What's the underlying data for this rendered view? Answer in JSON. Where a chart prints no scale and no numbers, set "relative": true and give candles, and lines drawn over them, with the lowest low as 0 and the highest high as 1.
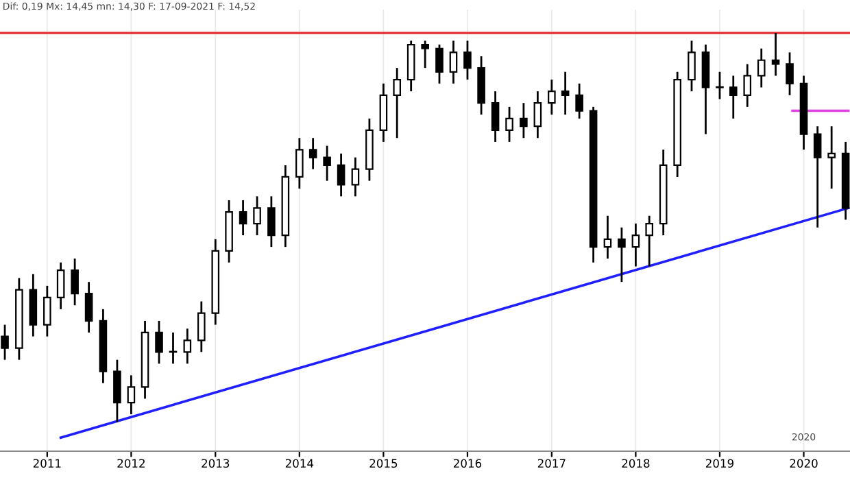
{
  "chart_data": {
    "type": "candlestick",
    "relative": true,
    "annotations": [
      "Dif: 0,19 Mx: 14,45 mn: 14,30 F: 17-09-2021 F: 14,52",
      "2020"
    ],
    "x": [
      "2010-07-01",
      "2010-09-01",
      "2010-11-01",
      "2011-01-01",
      "2011-03-01",
      "2011-05-01",
      "2011-07-01",
      "2011-09-01",
      "2011-11-01",
      "2012-01-01",
      "2012-03-01",
      "2012-05-01",
      "2012-07-01",
      "2012-09-01",
      "2012-11-01",
      "2013-01-01",
      "2013-03-01",
      "2013-05-01",
      "2013-07-01",
      "2013-09-01",
      "2013-11-01",
      "2014-01-01",
      "2014-03-01",
      "2014-05-01",
      "2014-07-01",
      "2014-09-01",
      "2014-11-01",
      "2015-01-01",
      "2015-03-01",
      "2015-05-01",
      "2015-07-01",
      "2015-09-01",
      "2015-11-01",
      "2016-01-01",
      "2016-03-01",
      "2016-05-01",
      "2016-07-01",
      "2016-09-01",
      "2016-11-01",
      "2017-01-01",
      "2017-03-01",
      "2017-05-01",
      "2017-07-01",
      "2017-09-01",
      "2017-11-01",
      "2018-01-01",
      "2018-03-01",
      "2018-05-01",
      "2018-07-01",
      "2018-09-01",
      "2018-11-01",
      "2019-01-01",
      "2019-03-01",
      "2019-05-01",
      "2019-07-01",
      "2019-09-01",
      "2019-11-01",
      "2020-01-01",
      "2020-03-01",
      "2020-05-01",
      "2020-07-01"
    ],
    "ohlc": [
      [
        0.22,
        0.25,
        0.16,
        0.19
      ],
      [
        0.19,
        0.37,
        0.16,
        0.34
      ],
      [
        0.34,
        0.38,
        0.22,
        0.25
      ],
      [
        0.25,
        0.35,
        0.22,
        0.32
      ],
      [
        0.32,
        0.41,
        0.29,
        0.39
      ],
      [
        0.39,
        0.42,
        0.3,
        0.33
      ],
      [
        0.33,
        0.36,
        0.23,
        0.26
      ],
      [
        0.26,
        0.29,
        0.1,
        0.13
      ],
      [
        0.13,
        0.16,
        0.0,
        0.05
      ],
      [
        0.05,
        0.12,
        0.02,
        0.09
      ],
      [
        0.09,
        0.26,
        0.06,
        0.23
      ],
      [
        0.23,
        0.26,
        0.15,
        0.18
      ],
      [
        0.18,
        0.23,
        0.15,
        0.18
      ],
      [
        0.18,
        0.24,
        0.15,
        0.21
      ],
      [
        0.21,
        0.31,
        0.18,
        0.28
      ],
      [
        0.28,
        0.47,
        0.25,
        0.44
      ],
      [
        0.44,
        0.57,
        0.41,
        0.54
      ],
      [
        0.54,
        0.57,
        0.48,
        0.51
      ],
      [
        0.51,
        0.58,
        0.48,
        0.55
      ],
      [
        0.55,
        0.58,
        0.45,
        0.48
      ],
      [
        0.48,
        0.66,
        0.45,
        0.63
      ],
      [
        0.63,
        0.73,
        0.6,
        0.7
      ],
      [
        0.7,
        0.73,
        0.65,
        0.68
      ],
      [
        0.68,
        0.71,
        0.62,
        0.66
      ],
      [
        0.66,
        0.69,
        0.58,
        0.61
      ],
      [
        0.61,
        0.68,
        0.58,
        0.65
      ],
      [
        0.65,
        0.78,
        0.62,
        0.75
      ],
      [
        0.75,
        0.87,
        0.72,
        0.84
      ],
      [
        0.84,
        0.91,
        0.73,
        0.88
      ],
      [
        0.88,
        0.98,
        0.85,
        0.97
      ],
      [
        0.97,
        0.98,
        0.91,
        0.96
      ],
      [
        0.96,
        0.97,
        0.87,
        0.9
      ],
      [
        0.9,
        0.98,
        0.87,
        0.95
      ],
      [
        0.95,
        0.98,
        0.88,
        0.91
      ],
      [
        0.91,
        0.94,
        0.79,
        0.82
      ],
      [
        0.82,
        0.85,
        0.72,
        0.75
      ],
      [
        0.75,
        0.81,
        0.72,
        0.78
      ],
      [
        0.78,
        0.82,
        0.73,
        0.76
      ],
      [
        0.76,
        0.85,
        0.73,
        0.82
      ],
      [
        0.82,
        0.88,
        0.79,
        0.85
      ],
      [
        0.85,
        0.9,
        0.79,
        0.84
      ],
      [
        0.84,
        0.87,
        0.78,
        0.8
      ],
      [
        0.8,
        0.81,
        0.41,
        0.45
      ],
      [
        0.45,
        0.53,
        0.42,
        0.47
      ],
      [
        0.47,
        0.5,
        0.36,
        0.45
      ],
      [
        0.45,
        0.51,
        0.4,
        0.48
      ],
      [
        0.48,
        0.53,
        0.4,
        0.51
      ],
      [
        0.51,
        0.7,
        0.48,
        0.66
      ],
      [
        0.66,
        0.9,
        0.63,
        0.88
      ],
      [
        0.88,
        0.98,
        0.85,
        0.95
      ],
      [
        0.95,
        0.97,
        0.74,
        0.86
      ],
      [
        0.86,
        0.9,
        0.83,
        0.86
      ],
      [
        0.86,
        0.89,
        0.78,
        0.84
      ],
      [
        0.84,
        0.92,
        0.81,
        0.89
      ],
      [
        0.89,
        0.96,
        0.86,
        0.93
      ],
      [
        0.93,
        1.0,
        0.89,
        0.92
      ],
      [
        0.92,
        0.95,
        0.84,
        0.87
      ],
      [
        0.87,
        0.89,
        0.7,
        0.74
      ],
      [
        0.74,
        0.76,
        0.5,
        0.68
      ],
      [
        0.68,
        0.76,
        0.6,
        0.69
      ],
      [
        0.69,
        0.72,
        0.52,
        0.55
      ]
    ],
    "color": "#000000",
    "series": [
      {
        "type": "line",
        "color": "#1f1fff",
        "x": [
          "2011-03-01",
          "2020-07-13"
        ],
        "values": [
          -0.04,
          0.55
        ]
      },
      {
        "type": "line",
        "color": "#e040e0",
        "x": [
          "2019-11-13",
          "2020-07-13"
        ],
        "values": [
          0.8,
          0.8
        ]
      }
    ],
    "ref_lines": [
      {
        "axis": "y",
        "value": 1.0,
        "label": null,
        "color": "#e03030"
      }
    ],
    "xlim": [
      "2010-06-10",
      "2020-07-20"
    ],
    "xticks": [
      {
        "value": "2011-01-01",
        "label": "2011"
      },
      {
        "value": "2012-01-01",
        "label": "2012"
      },
      {
        "value": "2013-01-01",
        "label": "2013"
      },
      {
        "value": "2014-01-01",
        "label": "2014"
      },
      {
        "value": "2015-01-01",
        "label": "2015"
      },
      {
        "value": "2016-01-01",
        "label": "2016"
      },
      {
        "value": "2017-01-01",
        "label": "2017"
      },
      {
        "value": "2018-01-01",
        "label": "2018"
      },
      {
        "value": "2019-01-01",
        "label": "2019"
      },
      {
        "value": "2020-01-01",
        "label": "2020"
      }
    ],
    "grid": "x",
    "tick_labels": "x"
  }
}
